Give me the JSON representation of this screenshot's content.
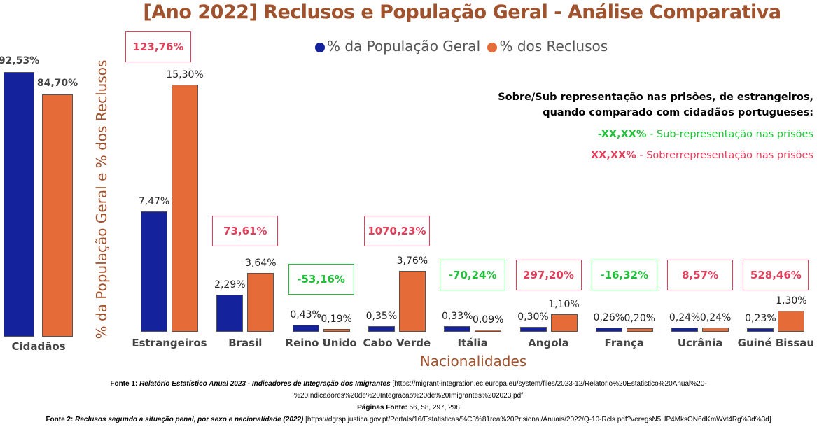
{
  "title": "[Ano 2022] Reclusos e População Geral - Análise Comparativa",
  "legend": [
    {
      "name": "% da População Geral",
      "color": "#14239b"
    },
    {
      "name": "% dos Reclusos",
      "color": "#e56b38"
    }
  ],
  "colors": {
    "positive_diff": "#e0405a",
    "negative_diff": "#22c03a"
  },
  "note": {
    "line1": "Sobre/Sub representação nas prisões, de estrangeiros,",
    "line2": "quando comparado com cidadãos portugueses:",
    "green_code": "-XX,XX%",
    "green_text": " - Sub-representação nas prisões",
    "red_code": "XX,XX%",
    "red_text": " - Sobrerrepresentação nas prisões"
  },
  "chart_data": [
    {
      "type": "bar",
      "categories": [
        "Cidadãos"
      ],
      "series": [
        {
          "name": "% da População Geral",
          "values": [
            92.53
          ]
        },
        {
          "name": "% dos Reclusos",
          "values": [
            84.7
          ]
        }
      ],
      "labels": [
        [
          "92,53%"
        ],
        [
          "84,70%"
        ]
      ]
    },
    {
      "type": "bar",
      "xlabel": "Nacionalidades",
      "ylabel": "% da População Geral e % dos Reclusos",
      "categories": [
        "Estrangeiros",
        "Brasil",
        "Reino Unido",
        "Cabo Verde",
        "Itália",
        "Angola",
        "França",
        "Ucrânia",
        "Guiné Bissau"
      ],
      "series": [
        {
          "name": "% da População Geral",
          "values": [
            7.47,
            2.29,
            0.43,
            0.35,
            0.33,
            0.3,
            0.26,
            0.24,
            0.23
          ]
        },
        {
          "name": "% dos Reclusos",
          "values": [
            15.3,
            3.64,
            0.19,
            3.76,
            0.09,
            1.1,
            0.2,
            0.24,
            1.3
          ]
        }
      ],
      "labels": [
        [
          "7,47%",
          "2,29%",
          "0,43%",
          "0,35%",
          "0,33%",
          "0,30%",
          "0,26%",
          "0,24%",
          "0,23%"
        ],
        [
          "15,30%",
          "3,64%",
          "0,19%",
          "3,76%",
          "0,09%",
          "1,10%",
          "0,20%",
          "0,24%",
          "1,30%"
        ]
      ],
      "differences": [
        "123,76%",
        "73,61%",
        "-53,16%",
        "1070,23%",
        "-70,24%",
        "297,20%",
        "-16,32%",
        "8,57%",
        "528,46%"
      ]
    }
  ],
  "sources": {
    "f1_label": "Fonte 1: ",
    "f1_title": "Relatório Estatístico Anual 2023 - Indicadores de Integração dos Imigrantes",
    "f1_url": " [https://migrant-integration.ec.europa.eu/system/files/2023-12/Relatorio%20Estatistico%20Anual%20-",
    "f1_url2": "%20Indicadores%20de%20Integracao%20de%20Imigrantes%202023.pdf",
    "pages_label": "Páginas Fonte:",
    "pages": " 56, 58, 297, 298",
    "f2_label": "Fonte 2: ",
    "f2_title": "Reclusos segundo a situação penal, por sexo e nacionalidade (2022)",
    "f2_url": " [https://dgrsp.justica.gov.pt/Portals/16/Estatisticas/%C3%81rea%20Prisional/Anuais/2022/Q-10-Rcls.pdf?ver=gsN5HP4MksON6dKmWvt4Rg%3d%3d]"
  }
}
